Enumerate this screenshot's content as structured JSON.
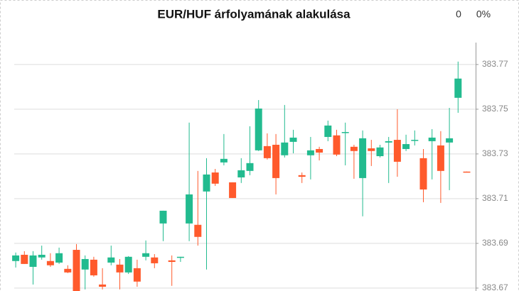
{
  "chart_data": {
    "type": "candlestick",
    "title": "EUR/HUF árfolyamának alakulása",
    "header_stats": [
      "0",
      "0%"
    ],
    "categories": [
      null,
      null,
      null,
      null,
      null,
      null,
      null,
      null,
      null,
      null,
      null,
      null,
      null,
      null,
      null,
      null,
      null,
      null,
      null,
      null,
      null,
      null,
      null,
      null,
      null,
      null,
      null,
      null,
      null,
      null,
      null,
      null,
      null,
      null,
      null,
      null,
      null,
      null,
      null,
      null,
      null,
      null,
      null,
      null,
      null,
      null,
      null,
      null,
      null,
      null,
      null,
      null,
      null
    ],
    "open": [
      383.6821,
      383.6849,
      383.6795,
      383.6837,
      383.6821,
      383.6814,
      383.6786,
      383.6871,
      383.6783,
      383.6827,
      383.6716,
      383.6814,
      383.6805,
      383.677,
      383.6789,
      383.684,
      383.6837,
      383.6989,
      383.6824,
      383.6837,
      383.6989,
      383.6983,
      383.7132,
      383.7217,
      383.7262,
      383.7173,
      383.7195,
      383.7224,
      383.7316,
      383.7335,
      383.7341,
      383.7294,
      383.7354,
      383.7205,
      383.7294,
      383.7322,
      383.7376,
      383.7383,
      383.7395,
      383.7332,
      383.7192,
      383.7325,
      383.729,
      383.7351,
      383.7363,
      383.7322,
      383.736,
      383.7281,
      383.7357,
      383.7338,
      383.7351,
      383.7551,
      383.7221
    ],
    "high": [
      383.6859,
      383.6865,
      383.6865,
      383.689,
      383.6856,
      383.6881,
      383.6802,
      383.6897,
      383.6846,
      383.684,
      383.6789,
      383.689,
      383.683,
      383.6843,
      383.6827,
      383.6913,
      383.6852,
      383.7046,
      383.6846,
      383.684,
      383.744,
      383.7224,
      383.7281,
      383.7233,
      383.7389,
      383.7173,
      383.7281,
      383.7424,
      383.7541,
      383.7392,
      383.7389,
      383.7519,
      383.7408,
      383.7217,
      383.7376,
      383.7332,
      383.7449,
      383.7408,
      383.744,
      383.7341,
      383.7405,
      383.7363,
      383.7341,
      383.7376,
      383.75,
      383.7386,
      383.7405,
      383.7322,
      383.7411,
      383.7402,
      383.7506,
      383.7713,
      383.7221
    ],
    "low": [
      383.6792,
      383.6808,
      383.6716,
      383.6827,
      383.6795,
      383.6808,
      383.6767,
      383.6681,
      383.6694,
      383.6751,
      383.6694,
      383.6802,
      383.6694,
      383.6763,
      383.6706,
      383.6824,
      383.6789,
      383.691,
      383.671,
      383.6817,
      383.691,
      383.689,
      383.6783,
      383.7157,
      383.7249,
      383.7103,
      383.717,
      383.7205,
      383.7313,
      383.7275,
      383.7119,
      383.7284,
      383.7303,
      383.717,
      383.7186,
      383.7271,
      383.7357,
      383.729,
      383.7249,
      383.7189,
      383.7021,
      383.7246,
      383.7284,
      383.717,
      383.7198,
      383.7313,
      383.7338,
      383.7084,
      383.7186,
      383.7081,
      383.7138,
      383.7484,
      383.7217
    ],
    "close": [
      383.6846,
      383.6808,
      383.6846,
      383.6849,
      383.6802,
      383.6856,
      383.677,
      383.6681,
      383.683,
      383.6757,
      383.6706,
      383.6837,
      383.677,
      383.684,
      383.6729,
      383.6856,
      383.6811,
      383.7046,
      383.6817,
      383.684,
      383.7119,
      383.6929,
      383.7208,
      383.7167,
      383.7278,
      383.7103,
      383.7227,
      383.7259,
      383.7503,
      383.7281,
      383.7192,
      383.7351,
      383.7373,
      383.7198,
      383.7316,
      383.7306,
      383.7427,
      383.7297,
      383.7398,
      383.7313,
      383.737,
      383.7313,
      383.7329,
      383.7357,
      383.7265,
      383.7344,
      383.7363,
      383.7141,
      383.7373,
      383.7224,
      383.737,
      383.7637,
      383.7217
    ],
    "up_color": "#22bb8f",
    "down_color": "#ff5a2c",
    "ylim": [
      383.6687,
      383.7798
    ],
    "yticks": [
      383.67,
      383.69,
      383.71,
      383.73,
      383.75,
      383.77
    ],
    "grid": true
  }
}
